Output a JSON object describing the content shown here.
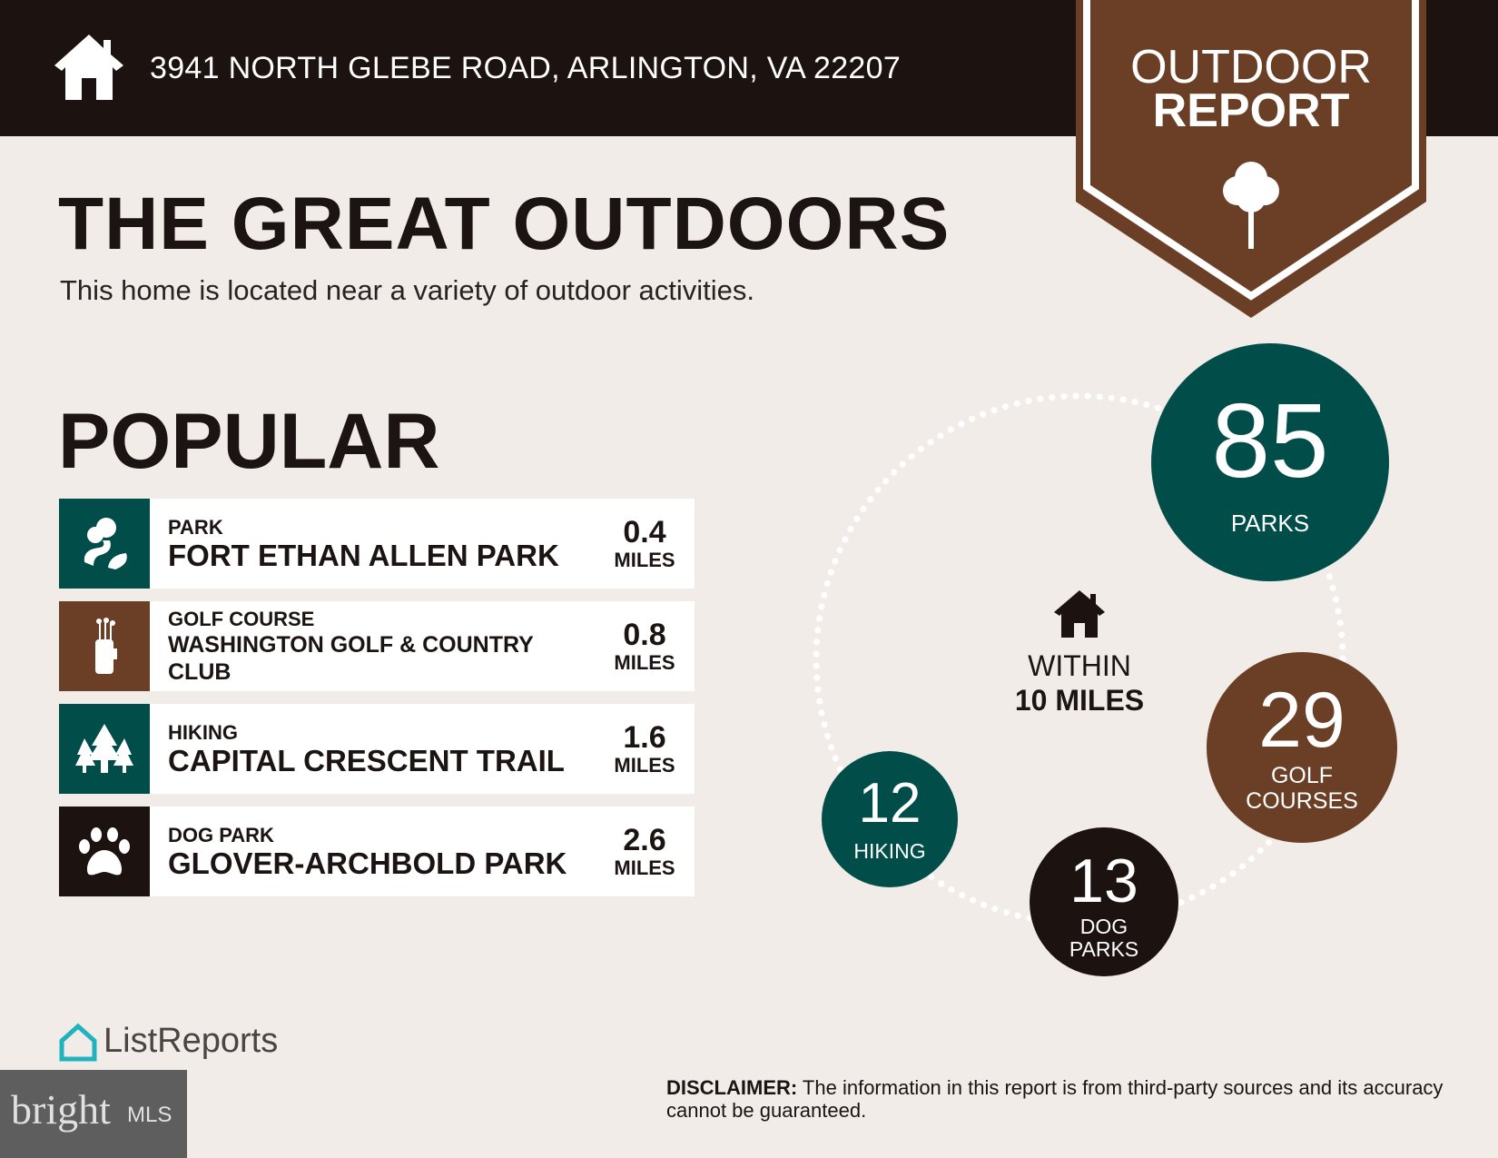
{
  "header": {
    "address": "3941 NORTH GLEBE ROAD, ARLINGTON, VA 22207",
    "icon": "house-icon"
  },
  "badge": {
    "line1": "OUTDOOR",
    "line2": "REPORT",
    "icon": "tree-icon",
    "color": "#6b3f26"
  },
  "main": {
    "title": "THE GREAT OUTDOORS",
    "subtitle": "This home is located near a variety of outdoor activities.",
    "popular_heading": "POPULAR",
    "popular": [
      {
        "category": "PARK",
        "name": "FORT ETHAN ALLEN PARK",
        "distance": "0.4",
        "unit": "MILES",
        "icon": "park-icon",
        "color": "#004d4a"
      },
      {
        "category": "GOLF COURSE",
        "name": "WASHINGTON GOLF & COUNTRY CLUB",
        "distance": "0.8",
        "unit": "MILES",
        "icon": "golf-bag-icon",
        "color": "#6b3f26"
      },
      {
        "category": "HIKING",
        "name": "CAPITAL CRESCENT TRAIL",
        "distance": "1.6",
        "unit": "MILES",
        "icon": "pine-trees-icon",
        "color": "#004d4a"
      },
      {
        "category": "DOG PARK",
        "name": "GLOVER-ARCHBOLD PARK",
        "distance": "2.6",
        "unit": "MILES",
        "icon": "paw-icon",
        "color": "#1c1210"
      }
    ]
  },
  "radius": {
    "line1": "WITHIN",
    "line2": "10 MILES",
    "icon": "house-icon"
  },
  "counts": [
    {
      "value": "85",
      "label1": "PARKS",
      "label2": "",
      "color": "#004d4a"
    },
    {
      "value": "29",
      "label1": "GOLF",
      "label2": "COURSES",
      "color": "#6b3f26"
    },
    {
      "value": "13",
      "label1": "DOG",
      "label2": "PARKS",
      "color": "#1c1210"
    },
    {
      "value": "12",
      "label1": "HIKING",
      "label2": "",
      "color": "#004d4a"
    }
  ],
  "footer": {
    "brand": "ListReports",
    "disclaimer_label": "DISCLAIMER:",
    "disclaimer_text": " The information in this report is from third-party sources and its accuracy cannot be guaranteed.",
    "watermark": "bright MLS"
  }
}
